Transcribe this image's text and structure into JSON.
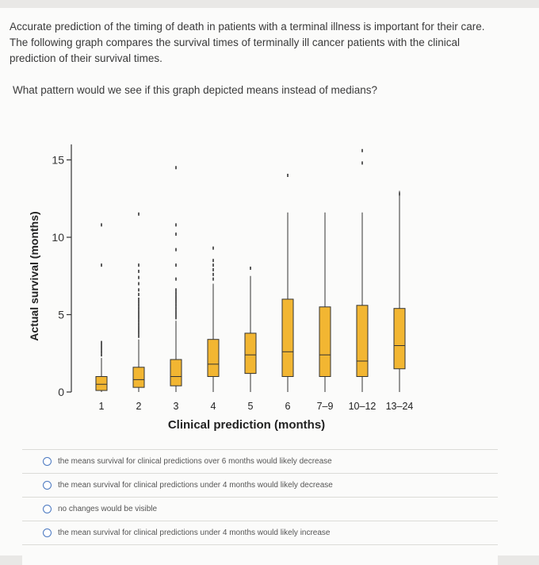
{
  "question": {
    "text": "Accurate prediction of the timing of death in patients with a terminal illness is important for their care. The following graph compares the survival times of terminally ill cancer patients with the clinical prediction of their survival times.",
    "prompt": "What pattern would we see if this graph depicted means instead of medians?"
  },
  "options": [
    {
      "label": "the means survival for clinical predictions over 6 months would likely decrease"
    },
    {
      "label": "the mean survival for clinical predictions under 4 months would likely decrease"
    },
    {
      "label": "no changes would be visible"
    },
    {
      "label": "the mean survival for clinical predictions under 4 months would likely increase"
    }
  ],
  "chart_data": {
    "type": "boxplot",
    "xlabel": "Clinical prediction (months)",
    "ylabel": "Actual survival (months)",
    "ylim": [
      0,
      16
    ],
    "yticks": [
      0,
      5,
      10,
      15
    ],
    "categories": [
      "1",
      "2",
      "3",
      "4",
      "5",
      "6",
      "7–9",
      "10–12",
      "13–24"
    ],
    "box_color": "#f2b632",
    "boxes": [
      {
        "q1": 0.1,
        "median": 0.5,
        "q3": 1.0,
        "whisker_low": 0,
        "whisker_high": 2.2,
        "outliers": [
          2.4,
          2.6,
          2.8,
          3.0,
          3.2,
          8.2,
          10.8
        ]
      },
      {
        "q1": 0.3,
        "median": 0.8,
        "q3": 1.6,
        "whisker_low": 0,
        "whisker_high": 3.4,
        "outliers": [
          3.6,
          3.8,
          4.0,
          4.2,
          4.4,
          4.6,
          4.8,
          5.0,
          5.2,
          5.4,
          5.6,
          5.8,
          6.0,
          6.3,
          6.6,
          7.0,
          7.4,
          7.8,
          8.2,
          11.5
        ]
      },
      {
        "q1": 0.4,
        "median": 1.0,
        "q3": 2.1,
        "whisker_low": 0,
        "whisker_high": 4.6,
        "outliers": [
          4.8,
          5.0,
          5.2,
          5.4,
          5.6,
          5.8,
          6.0,
          6.2,
          6.4,
          6.6,
          7.3,
          8.2,
          9.2,
          10.2,
          10.8,
          14.5
        ]
      },
      {
        "q1": 1.0,
        "median": 1.8,
        "q3": 3.4,
        "whisker_low": 0,
        "whisker_high": 7.0,
        "outliers": [
          7.3,
          7.6,
          7.9,
          8.2,
          8.5,
          9.3
        ]
      },
      {
        "q1": 1.2,
        "median": 2.4,
        "q3": 3.8,
        "whisker_low": 0,
        "whisker_high": 7.5,
        "outliers": [
          8.0
        ]
      },
      {
        "q1": 1.0,
        "median": 2.6,
        "q3": 6.0,
        "whisker_low": 0,
        "whisker_high": 11.6,
        "outliers": [
          14.0
        ]
      },
      {
        "q1": 1.0,
        "median": 2.4,
        "q3": 5.5,
        "whisker_low": 0,
        "whisker_high": 11.6,
        "outliers": []
      },
      {
        "q1": 1.0,
        "median": 2.0,
        "q3": 5.6,
        "whisker_low": 0,
        "whisker_high": 11.6,
        "outliers": [
          14.8,
          15.6
        ]
      },
      {
        "q1": 1.5,
        "median": 3.0,
        "q3": 5.4,
        "whisker_low": 0,
        "whisker_high": 13.0,
        "outliers": [
          12.8
        ]
      }
    ]
  }
}
